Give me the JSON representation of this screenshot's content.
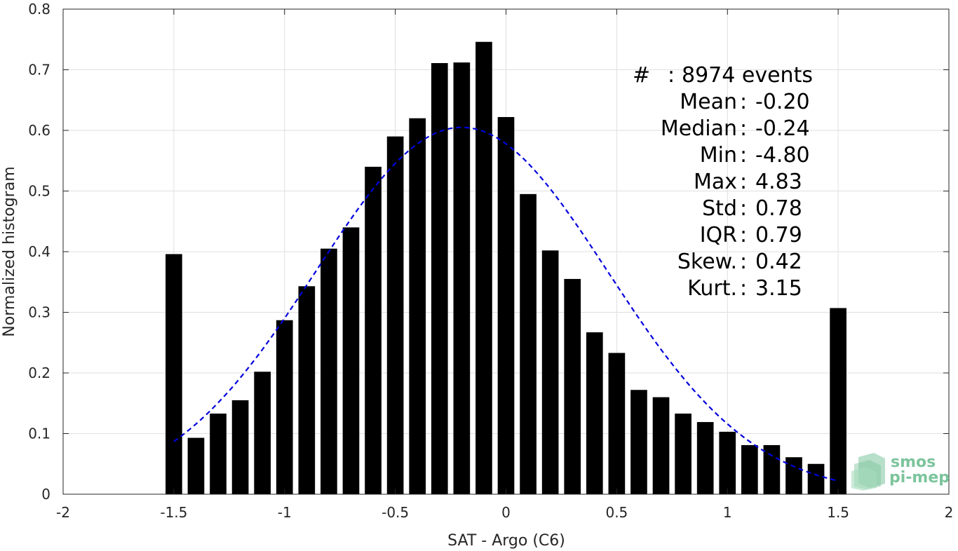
{
  "chart_data": {
    "type": "bar",
    "xlabel": "SAT - Argo (C6)",
    "ylabel": "Normalized histogram",
    "xlim": [
      -2,
      2
    ],
    "ylim": [
      0,
      0.8
    ],
    "xticks": [
      "-2",
      "-1.5",
      "-1",
      "-0.5",
      "0",
      "0.5",
      "1",
      "1.5",
      "2"
    ],
    "yticks": [
      "0",
      "0.1",
      "0.2",
      "0.3",
      "0.4",
      "0.5",
      "0.6",
      "0.7",
      "0.8"
    ],
    "grid": true,
    "bar_color": "#000000",
    "bars": [
      {
        "x": -1.5,
        "y": 0.396
      },
      {
        "x": -1.4,
        "y": 0.093
      },
      {
        "x": -1.3,
        "y": 0.133
      },
      {
        "x": -1.2,
        "y": 0.155
      },
      {
        "x": -1.1,
        "y": 0.202
      },
      {
        "x": -1.0,
        "y": 0.287
      },
      {
        "x": -0.9,
        "y": 0.343
      },
      {
        "x": -0.8,
        "y": 0.405
      },
      {
        "x": -0.7,
        "y": 0.44
      },
      {
        "x": -0.6,
        "y": 0.54
      },
      {
        "x": -0.5,
        "y": 0.59
      },
      {
        "x": -0.4,
        "y": 0.62
      },
      {
        "x": -0.3,
        "y": 0.711
      },
      {
        "x": -0.2,
        "y": 0.712
      },
      {
        "x": -0.1,
        "y": 0.746
      },
      {
        "x": 0.0,
        "y": 0.622
      },
      {
        "x": 0.1,
        "y": 0.495
      },
      {
        "x": 0.2,
        "y": 0.402
      },
      {
        "x": 0.3,
        "y": 0.355
      },
      {
        "x": 0.4,
        "y": 0.267
      },
      {
        "x": 0.5,
        "y": 0.233
      },
      {
        "x": 0.6,
        "y": 0.172
      },
      {
        "x": 0.7,
        "y": 0.16
      },
      {
        "x": 0.8,
        "y": 0.133
      },
      {
        "x": 0.9,
        "y": 0.119
      },
      {
        "x": 1.0,
        "y": 0.103
      },
      {
        "x": 1.1,
        "y": 0.081
      },
      {
        "x": 1.2,
        "y": 0.081
      },
      {
        "x": 1.3,
        "y": 0.061
      },
      {
        "x": 1.4,
        "y": 0.05
      },
      {
        "x": 1.5,
        "y": 0.307
      }
    ],
    "fit_curve": {
      "type": "gaussian",
      "style": "dashed",
      "color": "#0000dd",
      "mean": -0.2,
      "std": 0.66,
      "peak": 0.605,
      "x_range": [
        -1.5,
        1.5
      ]
    },
    "stats": [
      {
        "label": "#",
        "sep": ":",
        "value": "8974 events"
      },
      {
        "label": "Mean",
        "sep": ":",
        "value": "-0.20"
      },
      {
        "label": "Median",
        "sep": ":",
        "value": "-0.24"
      },
      {
        "label": "Min",
        "sep": ":",
        "value": "-4.80"
      },
      {
        "label": "Max",
        "sep": ":",
        "value": "4.83"
      },
      {
        "label": "Std",
        "sep": ":",
        "value": "0.78"
      },
      {
        "label": "IQR",
        "sep": ":",
        "value": "0.79"
      },
      {
        "label": "Skew.",
        "sep": ":",
        "value": "0.42"
      },
      {
        "label": "Kurt.",
        "sep": ":",
        "value": "3.15"
      }
    ]
  },
  "logo": {
    "line1": "smos",
    "line2": "pi-mep",
    "color": "#7cc49c"
  }
}
